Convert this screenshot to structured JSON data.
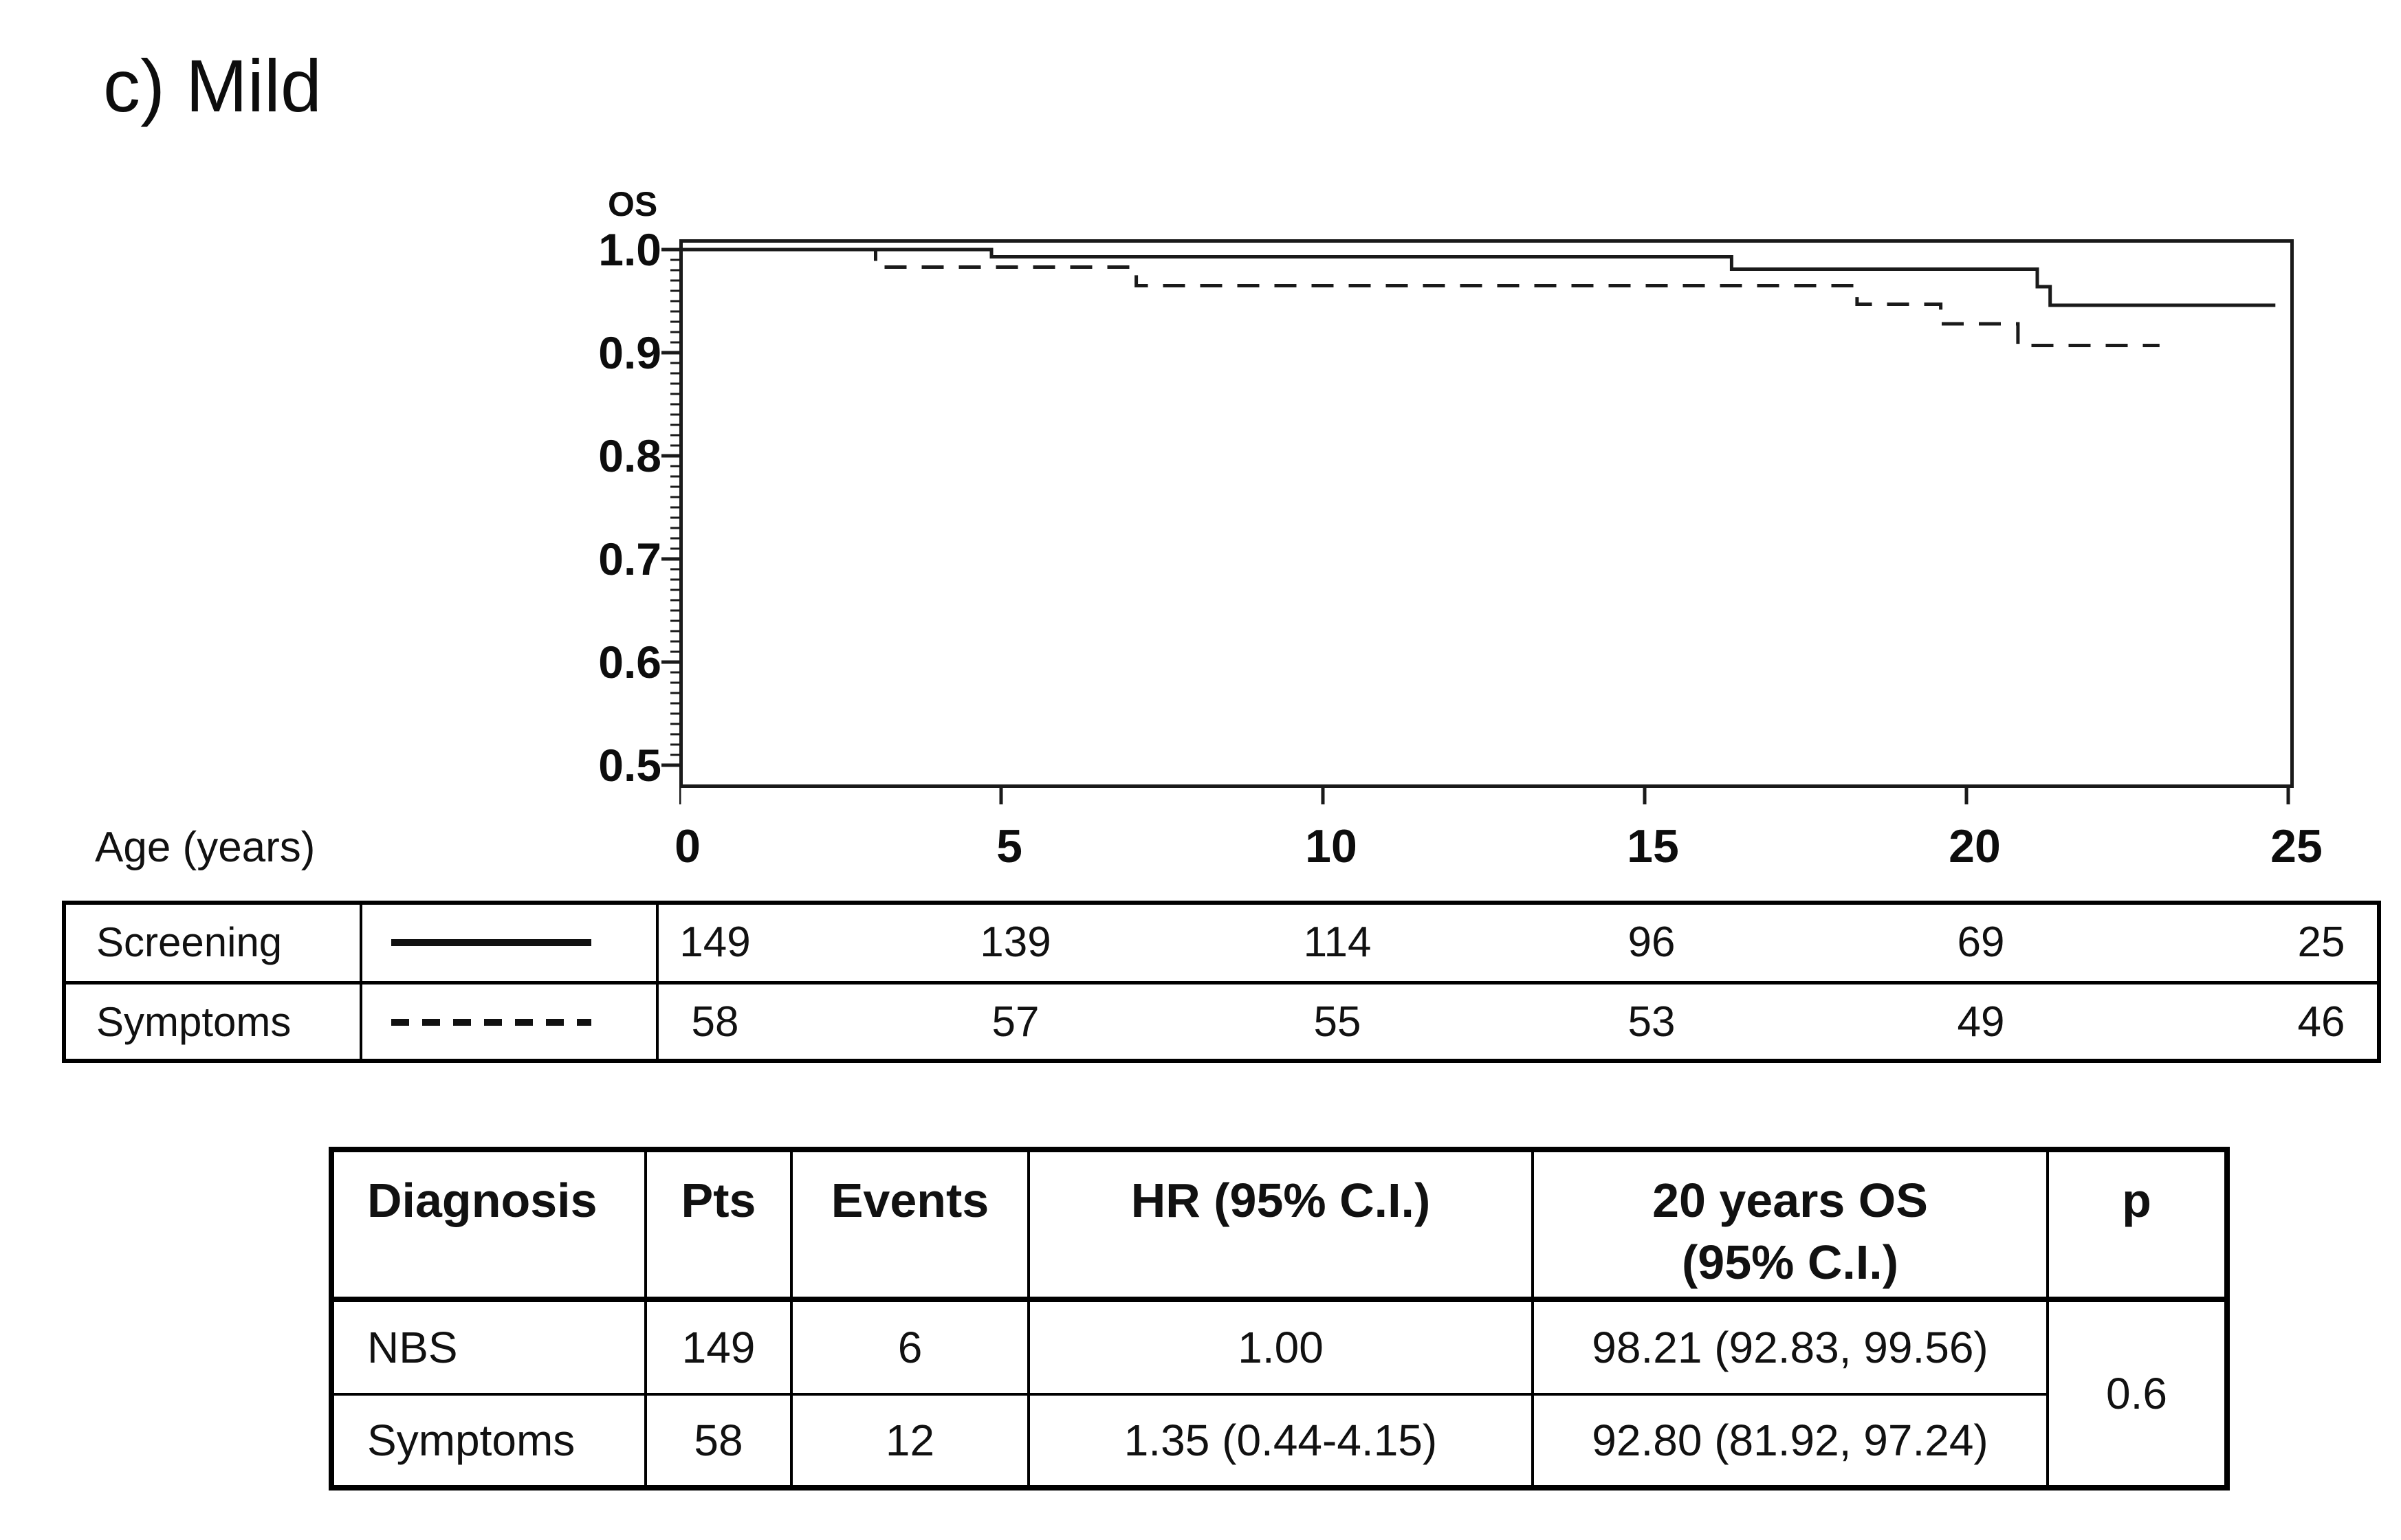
{
  "figure": {
    "panel_label": "c) Mild"
  },
  "chart": {
    "y_axis_title": "OS",
    "x_axis_title": "Age (years)"
  },
  "chart_data": {
    "type": "line",
    "subtype": "kaplan-meier-step",
    "title": "c) Mild",
    "xlabel": "Age (years)",
    "ylabel": "OS",
    "xlim": [
      0,
      25
    ],
    "ylim": [
      0.5,
      1.0
    ],
    "x_tick_values": [
      0,
      5,
      10,
      15,
      20,
      25
    ],
    "x_tick_labels": [
      "0",
      "5",
      "10",
      "15",
      "20",
      "25"
    ],
    "y_tick_values": [
      1.0,
      0.9,
      0.8,
      0.7,
      0.6,
      0.5
    ],
    "y_tick_labels": [
      "1.0",
      "0.9",
      "0.8",
      "0.7",
      "0.6",
      "0.5"
    ],
    "minor_y_tick_step": 0.01,
    "grid": false,
    "legend_position": "in-risk-table",
    "series": [
      {
        "name": "Screening",
        "style": "solid",
        "step_points": [
          [
            0,
            1.0
          ],
          [
            4.85,
            0.993
          ],
          [
            16.35,
            0.981
          ],
          [
            21.1,
            0.964
          ],
          [
            21.3,
            0.946
          ],
          [
            24.8,
            0.946
          ]
        ]
      },
      {
        "name": "Symptoms",
        "style": "dashed",
        "step_points": [
          [
            0,
            1.0
          ],
          [
            3.05,
            0.983
          ],
          [
            7.1,
            0.965
          ],
          [
            18.3,
            0.947
          ],
          [
            19.6,
            0.928
          ],
          [
            20.8,
            0.907
          ],
          [
            23.0,
            0.907
          ]
        ]
      }
    ]
  },
  "risk_table": {
    "x_tick_values": [
      0,
      5,
      10,
      15,
      20,
      25
    ],
    "rows": [
      {
        "label": "Screening",
        "symbol": "solid-line",
        "counts": [
          "149",
          "139",
          "114",
          "96",
          "69",
          "25"
        ]
      },
      {
        "label": "Symptoms",
        "symbol": "dashed-line",
        "counts": [
          "58",
          "57",
          "55",
          "53",
          "49",
          "46"
        ]
      }
    ]
  },
  "summary_table": {
    "headers": {
      "diagnosis": "Diagnosis",
      "pts": "Pts",
      "events": "Events",
      "hr": "HR (95% C.I.)",
      "os20": "20 years OS\n(95% C.I.)",
      "p": "p"
    },
    "rows": [
      {
        "diagnosis": "NBS",
        "pts": "149",
        "events": "6",
        "hr": "1.00",
        "os20": "98.21 (92.83, 99.56)"
      },
      {
        "diagnosis": "Symptoms",
        "pts": "58",
        "events": "12",
        "hr": "1.35 (0.44-4.15)",
        "os20": "92.80 (81.92, 97.24)"
      }
    ],
    "p_value": "0.6"
  },
  "colors": {
    "ink": "#111111",
    "background": "#ffffff"
  }
}
